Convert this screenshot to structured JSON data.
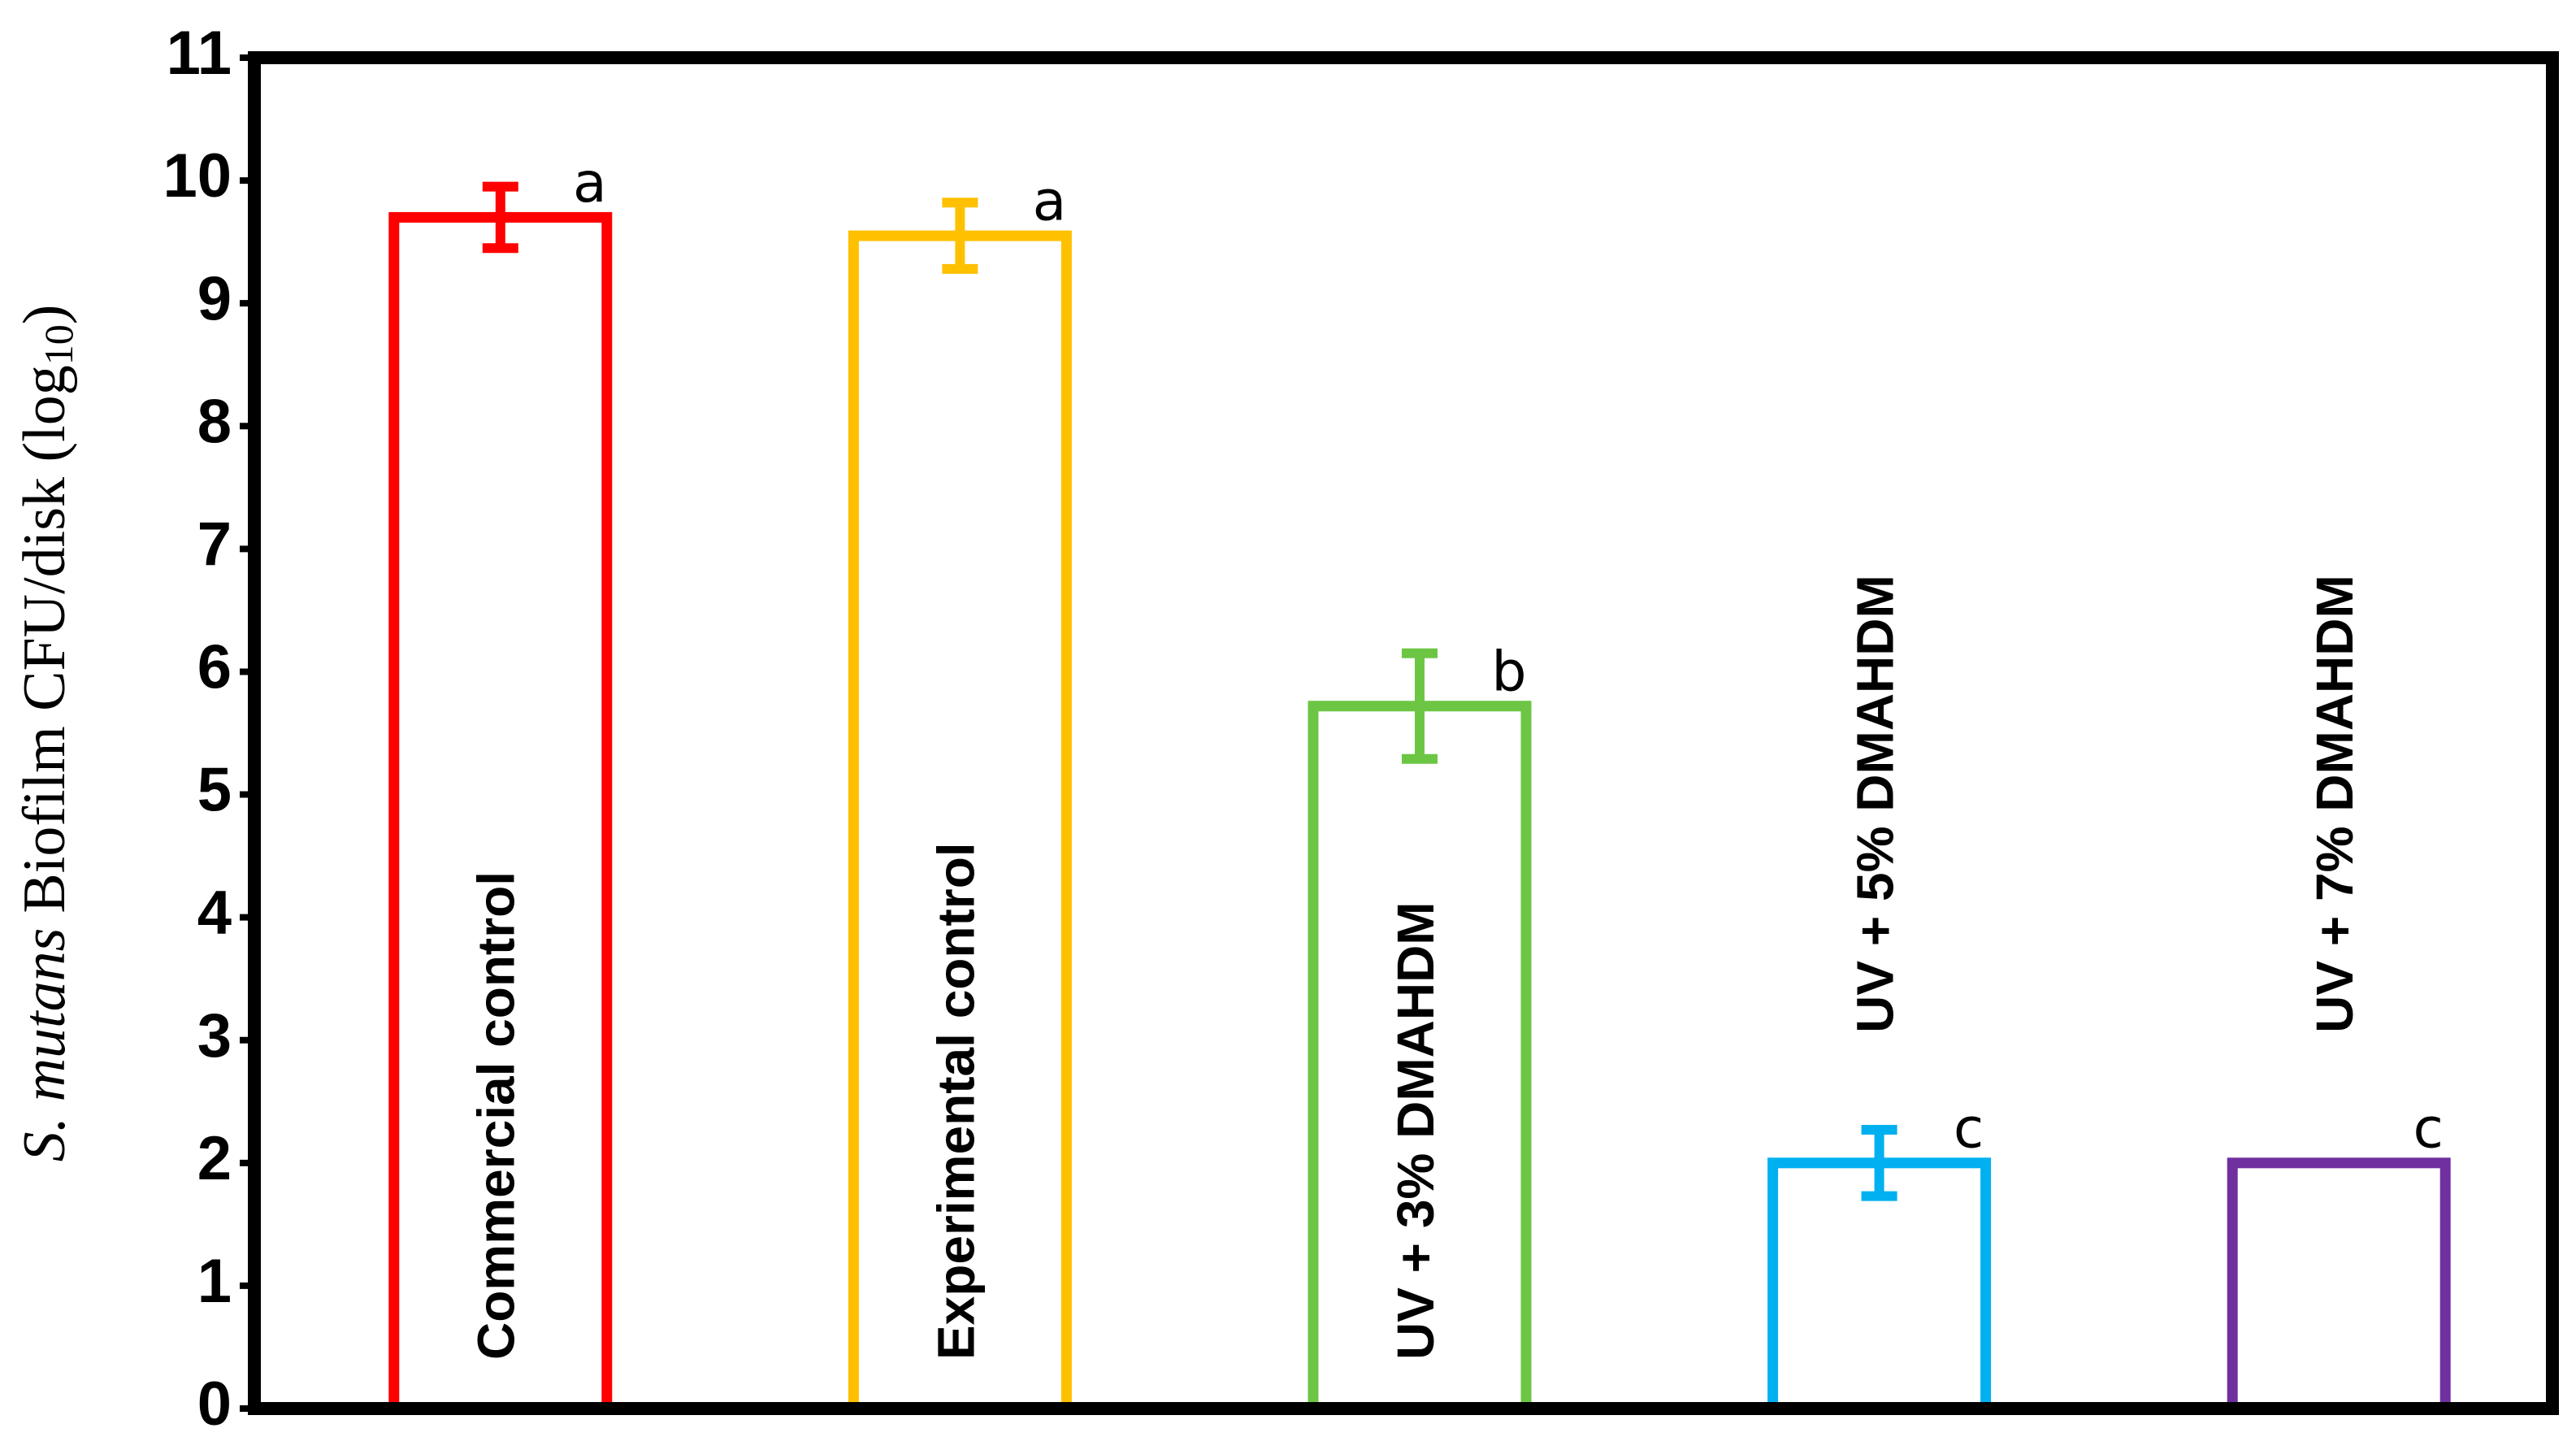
{
  "chart_data": {
    "type": "bar",
    "y_label": [
      "S. mutans",
      "Biofilm CFU/disk (log",
      "10",
      ")"
    ],
    "categories": [
      "Commercial control",
      "Experimental control",
      "UV + 3% DMAHDM",
      "UV + 5% DMAHDM",
      "UV + 7% DMAHDM"
    ],
    "values": [
      9.7,
      9.55,
      5.72,
      2.0,
      2.0
    ],
    "errors": [
      0.25,
      0.27,
      0.43,
      0.27,
      0
    ],
    "annotations": [
      "a",
      "a",
      "b",
      "c",
      "c"
    ],
    "colors": [
      "#ff0000",
      "#ffc000",
      "#6cc644",
      "#00b0f0",
      "#7030a0"
    ],
    "ylim": [
      0,
      11
    ],
    "yticks": [
      0,
      1,
      2,
      3,
      4,
      5,
      6,
      7,
      8,
      9,
      10,
      11
    ],
    "grid": false
  }
}
